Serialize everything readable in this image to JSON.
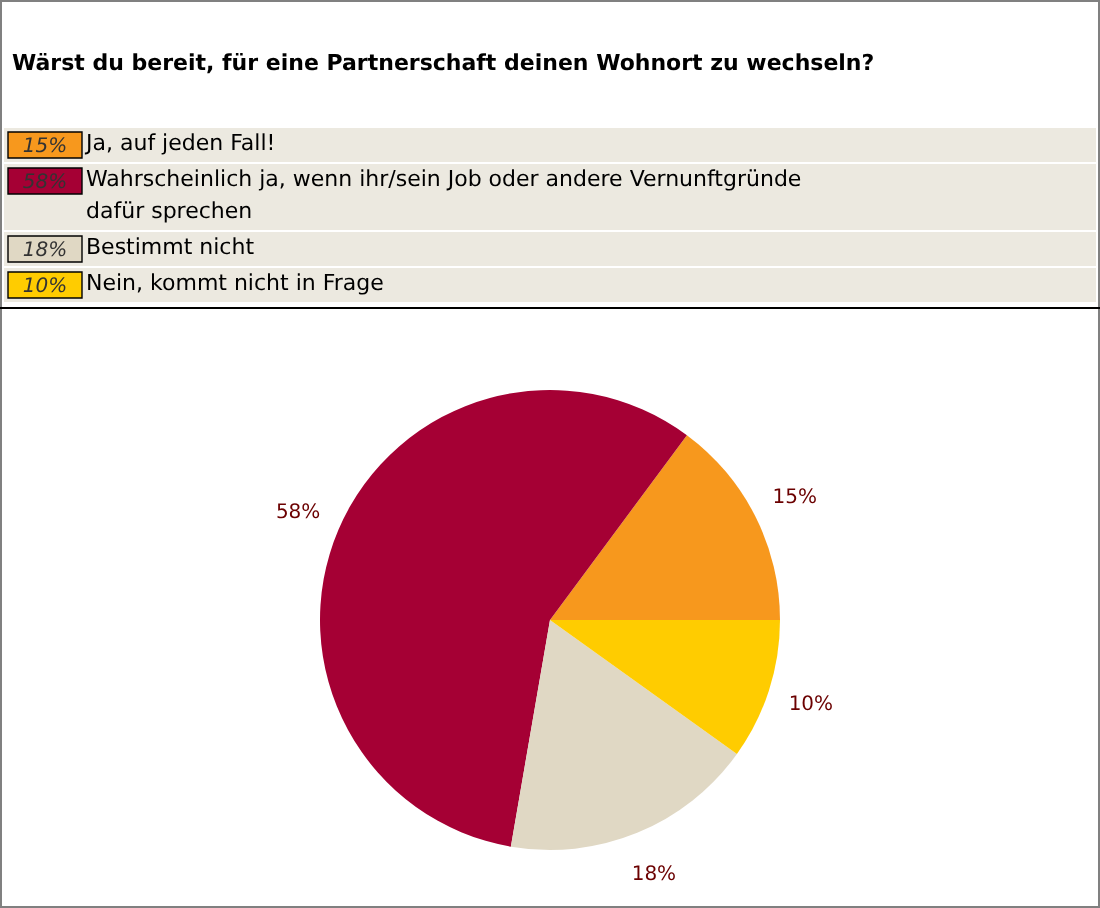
{
  "chart_data": {
    "type": "pie",
    "title": "Wärst du bereit, für eine Partnerschaft deinen Wohnort zu wechseln?",
    "categories": [
      "Ja, auf jeden Fall!",
      "Wahrscheinlich ja, wenn ihr/sein Job oder andere Vernunftgründe dafür sprechen",
      "Bestimmt nicht",
      "Nein, kommt nicht in Frage"
    ],
    "values": [
      15,
      58,
      18,
      10
    ],
    "value_labels": [
      "15%",
      "58%",
      "18%",
      "10%"
    ],
    "colors": [
      "#f7981d",
      "#a50034",
      "#e0d8c4",
      "#ffcc00"
    ],
    "legend": "top"
  }
}
